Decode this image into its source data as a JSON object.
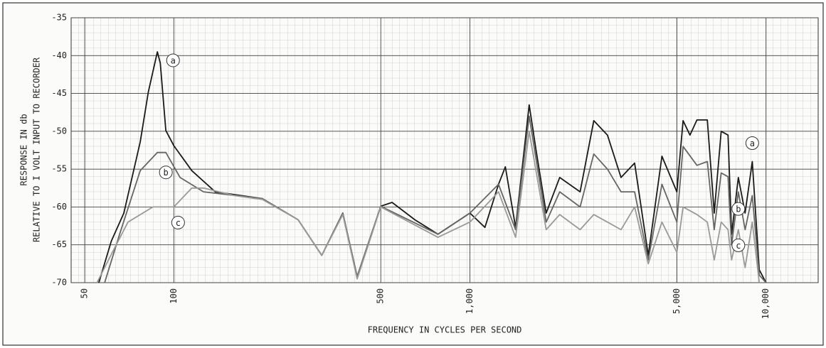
{
  "chart_data": {
    "type": "line",
    "x_label": "FREQUENCY IN CYCLES PER SECOND",
    "y_label": [
      "RESPONSE IN db",
      "RELATIVE TO I VOLT INPUT TO RECORDER"
    ],
    "x_scale": "log",
    "grid": true,
    "xlim": [
      45,
      15000
    ],
    "ylim": [
      -70,
      -35
    ],
    "xticks": [
      50,
      100,
      500,
      {
        "value": 1000,
        "label": "1,000"
      },
      {
        "value": 5000,
        "label": "5,000"
      },
      {
        "value": 10000,
        "label": "10,000"
      }
    ],
    "yticks": [
      -35,
      -40,
      -45,
      -50,
      -55,
      -60,
      -65,
      -70
    ],
    "series": [
      {
        "name": "a",
        "color": "#1a1a1a",
        "x": [
          55.8,
          61.5,
          67.8,
          77,
          82,
          88,
          90,
          94,
          100,
          115,
          138,
          199,
          263,
          316,
          372,
          416,
          500,
          546,
          652,
          780,
          1000,
          1124,
          1249,
          1317,
          1426,
          1585,
          1671,
          1809,
          2010,
          2356,
          2620,
          2913,
          3238,
          3600,
          4003,
          4450,
          5000,
          5246,
          5535,
          5844,
          6336,
          6685,
          7055,
          7441,
          7650,
          8064,
          8500,
          8985,
          9485,
          10000
        ],
        "values": [
          -70,
          -64.5,
          -60.8,
          -51.4,
          -44.8,
          -39.5,
          -41,
          -49.9,
          -51.9,
          -55.2,
          -58,
          -58.9,
          -61.7,
          -66.4,
          -60.8,
          -69.2,
          -59.9,
          -59.4,
          -61.7,
          -63.6,
          -60.8,
          -62.7,
          -57,
          -54.7,
          -62.7,
          -46.5,
          -52.4,
          -60.8,
          -56.1,
          -58,
          -48.6,
          -50.5,
          -56.1,
          -54.2,
          -66.4,
          -53.3,
          -58,
          -48.6,
          -50.5,
          -48.5,
          -48.5,
          -60.8,
          -50,
          -50.5,
          -63.6,
          -56.1,
          -60.8,
          -54,
          -68.3,
          -70
        ]
      },
      {
        "name": "b",
        "color": "#666666",
        "x": [
          58.4,
          65.6,
          77,
          88,
          94,
          105,
          126,
          199,
          263,
          316,
          372,
          416,
          500,
          780,
          1000,
          1249,
          1426,
          1585,
          1809,
          2010,
          2356,
          2620,
          2913,
          3238,
          3600,
          4003,
          4450,
          5000,
          5246,
          5844,
          6336,
          6685,
          7055,
          7441,
          7650,
          8064,
          8500,
          8985,
          9485,
          10000
        ],
        "values": [
          -70,
          -63.6,
          -55.2,
          -52.8,
          -52.8,
          -56.1,
          -58,
          -58.9,
          -61.7,
          -66.4,
          -60.8,
          -69.2,
          -59.9,
          -63.6,
          -60.8,
          -57,
          -63,
          -48,
          -62,
          -58,
          -60,
          -53,
          -55,
          -58,
          -58,
          -67,
          -57,
          -62,
          -52,
          -54.5,
          -54,
          -63,
          -55.5,
          -56,
          -65,
          -58,
          -63,
          -58.5,
          -69,
          -70
        ]
      },
      {
        "name": "c",
        "color": "#9a9a9a",
        "x": [
          55,
          62,
          70,
          85,
          100,
          115,
          126,
          160,
          199,
          263,
          316,
          372,
          416,
          500,
          780,
          1000,
          1249,
          1426,
          1585,
          1809,
          2010,
          2356,
          2620,
          2913,
          3238,
          3600,
          4003,
          4450,
          5000,
          5246,
          5844,
          6336,
          6685,
          7055,
          7441,
          7650,
          8064,
          8500,
          8985,
          9485
        ],
        "values": [
          -70,
          -66,
          -62,
          -60,
          -60,
          -57.5,
          -57.5,
          -58.5,
          -59,
          -61.7,
          -66.4,
          -61,
          -69.5,
          -60,
          -64,
          -62,
          -58,
          -64,
          -50,
          -63,
          -61,
          -63,
          -61,
          -62,
          -63,
          -60,
          -67.5,
          -62,
          -66,
          -60,
          -61,
          -62,
          -67,
          -62,
          -63,
          -67,
          -63,
          -68,
          -62,
          -70
        ]
      }
    ]
  }
}
